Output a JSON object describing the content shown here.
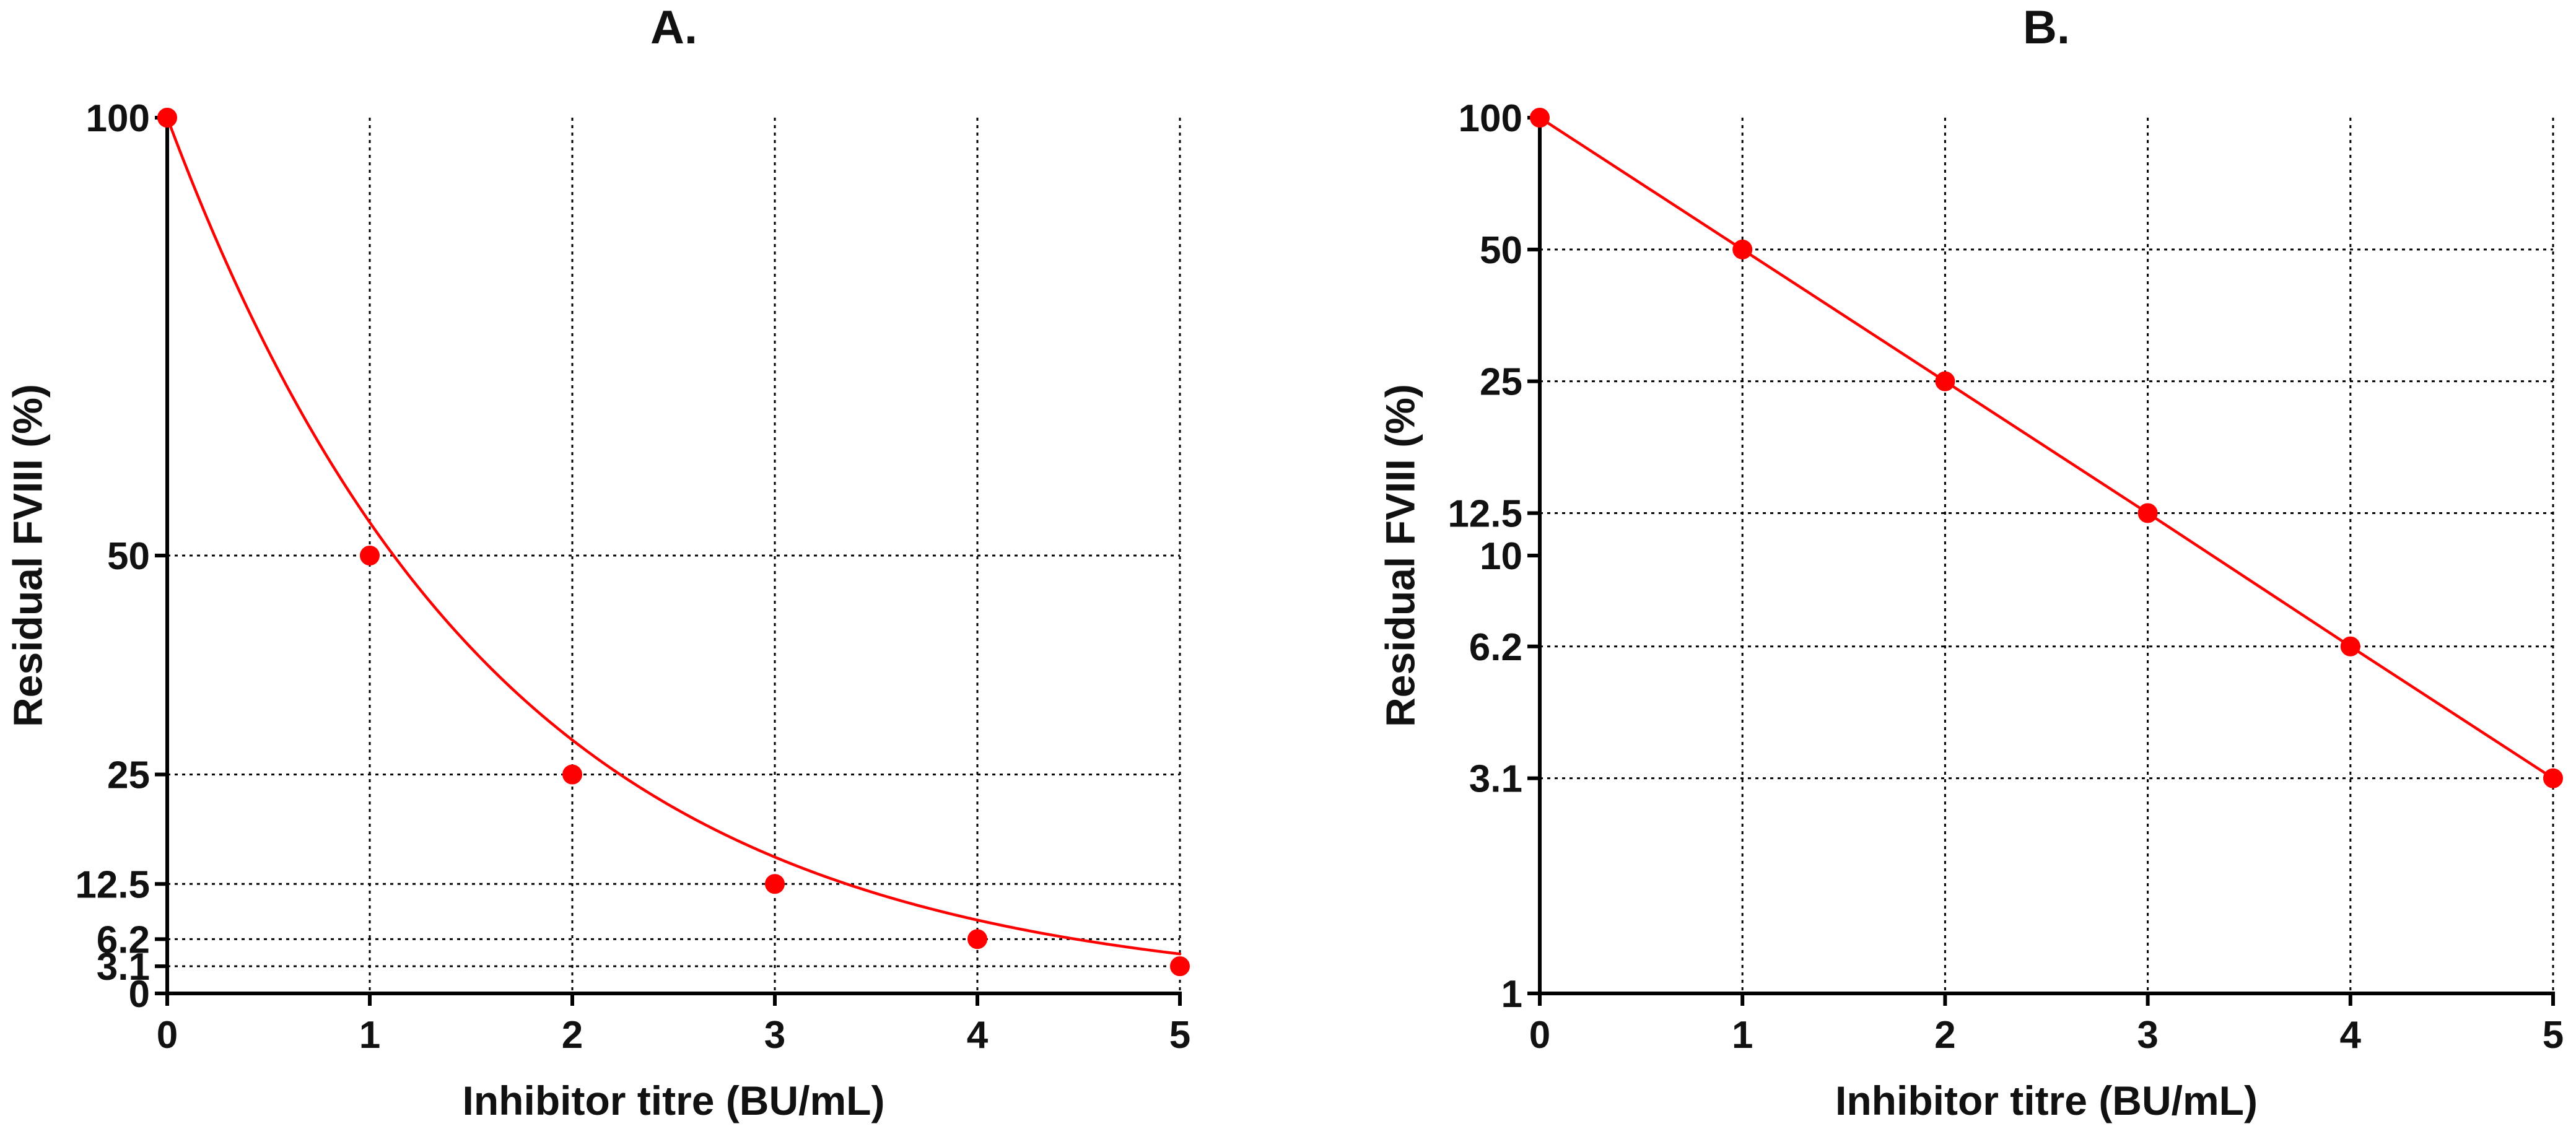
{
  "colors": {
    "series": "#ff0000",
    "axis": "#000000",
    "text": "#111111"
  },
  "chart_data": [
    {
      "panel": "A.",
      "type": "scatter",
      "xlabel": "Inhibitor titre (BU/mL)",
      "ylabel": "Residual FVIII (%)",
      "xlim": [
        0,
        5
      ],
      "ylim": [
        0,
        100
      ],
      "yscale": "linear",
      "grid": true,
      "x_ticks": [
        "0",
        "1",
        "2",
        "3",
        "4",
        "5"
      ],
      "y_ticks": [
        {
          "value": 100,
          "label": "100"
        },
        {
          "value": 50,
          "label": "50"
        },
        {
          "value": 25,
          "label": "25"
        },
        {
          "value": 12.5,
          "label": "12.5"
        },
        {
          "value": 6.2,
          "label": "6.2"
        },
        {
          "value": 3.1,
          "label": "3.1"
        },
        {
          "value": 0,
          "label": "0"
        }
      ],
      "x_grid": [
        1,
        2,
        3,
        4,
        5
      ],
      "y_grid": [
        50,
        25,
        12.5,
        6.2,
        3.1
      ],
      "series": [
        {
          "x": [
            0,
            1,
            2,
            3,
            4,
            5
          ],
          "y": [
            100,
            50,
            25,
            12.5,
            6.2,
            3.1
          ],
          "fit": "exponential decay curve",
          "fit_model": {
            "a": 100,
            "k": 0.62
          }
        }
      ]
    },
    {
      "panel": "B.",
      "type": "line",
      "xlabel": "Inhibitor titre (BU/mL)",
      "ylabel": "Residual FVIII (%)",
      "xlim": [
        0,
        5
      ],
      "ylim": [
        1,
        100
      ],
      "yscale": "log",
      "grid": true,
      "x_ticks": [
        "0",
        "1",
        "2",
        "3",
        "4",
        "5"
      ],
      "y_ticks": [
        {
          "value": 100,
          "label": "100"
        },
        {
          "value": 50,
          "label": "50"
        },
        {
          "value": 25,
          "label": "25"
        },
        {
          "value": 12.5,
          "label": "12.5"
        },
        {
          "value": 10,
          "label": "10"
        },
        {
          "value": 6.2,
          "label": "6.2"
        },
        {
          "value": 3.1,
          "label": "3.1"
        },
        {
          "value": 1,
          "label": "1"
        }
      ],
      "x_grid": [
        1,
        2,
        3,
        4,
        5
      ],
      "y_grid": [
        50,
        25,
        12.5,
        6.2,
        3.1
      ],
      "series": [
        {
          "x": [
            0,
            1,
            2,
            3,
            4,
            5
          ],
          "y": [
            100,
            50,
            25,
            12.5,
            6.2,
            3.1
          ]
        }
      ]
    }
  ]
}
